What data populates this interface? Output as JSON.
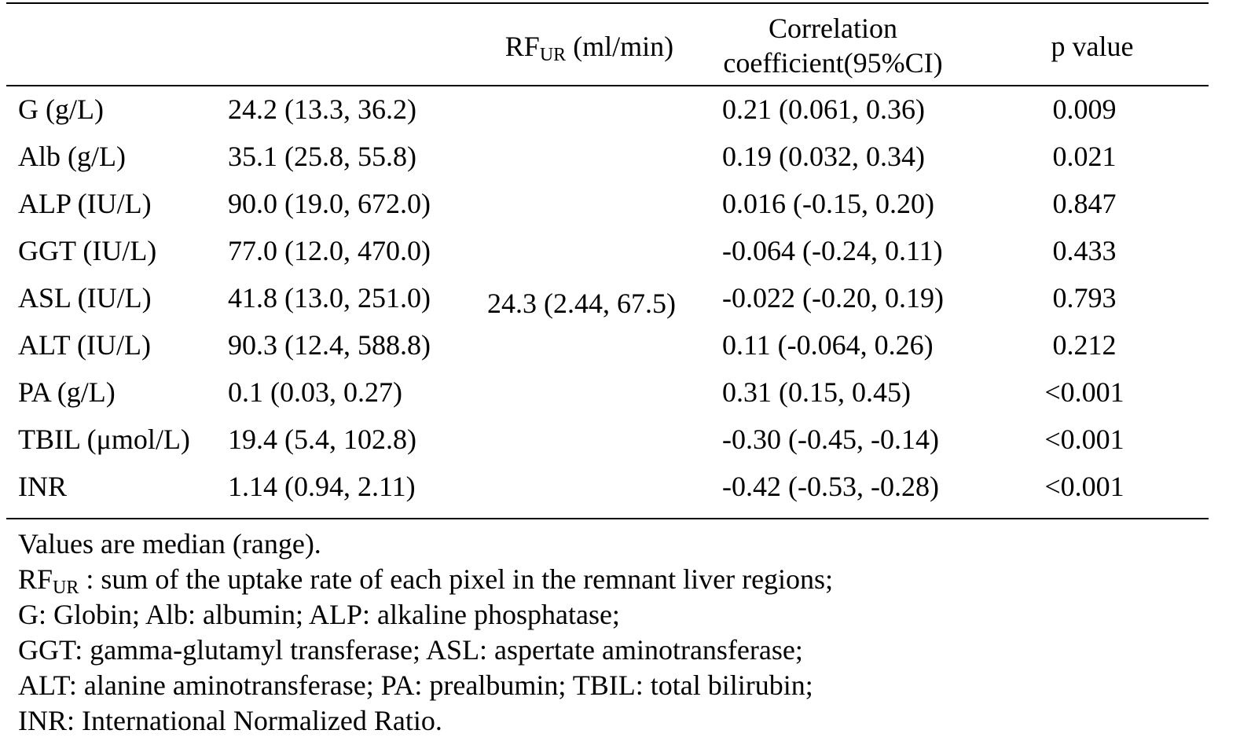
{
  "table": {
    "headers": {
      "rf_main": "RF",
      "rf_sub": "UR",
      "rf_unit": " (ml/min)",
      "corr_line1": "Correlation",
      "corr_line2": "coefficient(95%CI)",
      "p": "p value"
    },
    "rf_value": "24.3 (2.44, 67.5)",
    "rows": [
      {
        "variable": "G (g/L)",
        "value": "24.2 (13.3, 36.2)",
        "corr": "0.21 (0.061,  0.36)",
        "p": "0.009"
      },
      {
        "variable": "Alb (g/L)",
        "value": "35.1 (25.8, 55.8)",
        "corr": "0.19 (0.032, 0.34)",
        "p": "0.021"
      },
      {
        "variable": "ALP (IU/L)",
        "value": "90.0 (19.0, 672.0)",
        "corr": "0.016 (-0.15, 0.20)",
        "p": "0.847"
      },
      {
        "variable": "GGT (IU/L)",
        "value": "77.0 (12.0, 470.0)",
        "corr": "-0.064 (-0.24, 0.11)",
        "p": "0.433"
      },
      {
        "variable": "ASL (IU/L)",
        "value": "41.8 (13.0, 251.0)",
        "corr": "-0.022 (-0.20, 0.19)",
        "p": "0.793"
      },
      {
        "variable": "ALT (IU/L)",
        "value": "90.3 (12.4, 588.8)",
        "corr": "0.11 (-0.064, 0.26)",
        "p": "0.212"
      },
      {
        "variable": "PA (g/L)",
        "value": "0.1 (0.03, 0.27)",
        "corr": "0.31 (0.15, 0.45)",
        "p": "<0.001"
      },
      {
        "variable": "TBIL (μmol/L)",
        "value": "19.4 (5.4, 102.8)",
        "corr": "-0.30 (-0.45, -0.14)",
        "p": "<0.001"
      },
      {
        "variable": "INR",
        "value": "1.14 (0.94, 2.11)",
        "corr": "-0.42 (-0.53, -0.28)",
        "p": "<0.001"
      }
    ]
  },
  "notes": {
    "line1": "Values are median (range).",
    "line2_main": "RF",
    "line2_sub": "UR",
    "line2_rest": " : sum of the uptake rate of each pixel in the remnant liver regions;",
    "line3": "G: Globin; Alb: albumin; ALP: alkaline phosphatase;",
    "line4": "GGT: gamma-glutamyl transferase; ASL: aspertate aminotransferase;",
    "line5": "ALT: alanine aminotransferase; PA: prealbumin; TBIL: total bilirubin;",
    "line6": "INR: International Normalized Ratio."
  }
}
